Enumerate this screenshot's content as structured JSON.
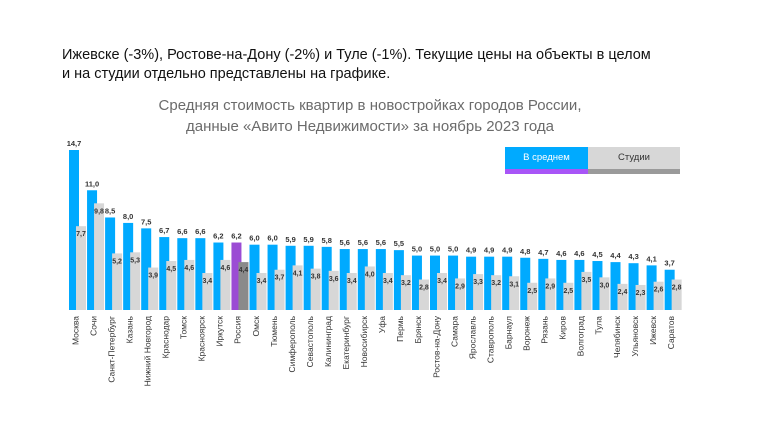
{
  "intro": {
    "line1": "Ижевске (-3%), Ростове-на-Дону (-2%) и Туле (-1%). Текущие цены на объекты в целом",
    "line2": "и на студии отдельно представлены на графике."
  },
  "colors": {
    "average": "#00aaff",
    "average_russia": "#9b4bd4",
    "studio": "#d7d7d7",
    "studio_russia": "#8a8a8a",
    "legend_average_strip": "#a855f7",
    "legend_studio_strip": "#9a9a9a"
  },
  "chart_data": {
    "type": "bar",
    "title": "Средняя стоимость квартир в новостройках городов России,",
    "subtitle": "данные «Авито Недвижимости» за ноябрь 2023 года",
    "legend_position": "top-right",
    "categories": [
      "Москва",
      "Сочи",
      "Санкт-Петербург",
      "Казань",
      "Нижний Новгород",
      "Краснодар",
      "Томск",
      "Красноярск",
      "Иркутск",
      "Россия",
      "Омск",
      "Тюмень",
      "Симферополь",
      "Севастополь",
      "Калининград",
      "Екатеринбург",
      "Новосибирск",
      "Уфа",
      "Пермь",
      "Брянск",
      "Ростов-на-Дону",
      "Самара",
      "Ярославль",
      "Ставрополь",
      "Барнаул",
      "Воронеж",
      "Рязань",
      "Киров",
      "Волгоград",
      "Тула",
      "Челябинск",
      "Ульяновск",
      "Ижевск",
      "Саратов"
    ],
    "series": [
      {
        "name": "В среднем",
        "values": [
          14.7,
          11.0,
          8.5,
          8.0,
          7.5,
          6.7,
          6.6,
          6.6,
          6.2,
          6.2,
          6.0,
          6.0,
          5.9,
          5.9,
          5.8,
          5.6,
          5.6,
          5.6,
          5.5,
          5.0,
          5.0,
          5.0,
          4.9,
          4.9,
          4.9,
          4.8,
          4.7,
          4.6,
          4.6,
          4.5,
          4.4,
          4.3,
          4.1,
          3.7
        ],
        "labels": [
          "14,7",
          "11,0",
          "8,5",
          "8,0",
          "7,5",
          "6,7",
          "6,6",
          "6,6",
          "6,2",
          "6,2",
          "6,0",
          "6,0",
          "5,9",
          "5,9",
          "5,8",
          "5,6",
          "5,6",
          "5,6",
          "5,5",
          "5,0",
          "5,0",
          "5,0",
          "4,9",
          "4,9",
          "4,9",
          "4,8",
          "4,7",
          "4,6",
          "4,6",
          "4,5",
          "4,4",
          "4,3",
          "4,1",
          "3,7"
        ]
      },
      {
        "name": "Студии",
        "values": [
          7.7,
          9.8,
          5.2,
          5.3,
          3.9,
          4.5,
          4.6,
          3.4,
          4.6,
          4.4,
          3.4,
          3.7,
          4.1,
          3.8,
          3.6,
          3.4,
          4.0,
          3.4,
          3.2,
          2.8,
          3.4,
          2.9,
          3.3,
          3.2,
          3.1,
          2.5,
          2.9,
          2.5,
          3.5,
          3.0,
          2.4,
          2.3,
          2.6,
          2.8
        ],
        "labels": [
          "7,7",
          "9,8",
          "5,2",
          "5,3",
          "3,9",
          "4,5",
          "4,6",
          "3,4",
          "4,6",
          "4,4",
          "3,4",
          "3,7",
          "4,1",
          "3,8",
          "3,6",
          "3,4",
          "4,0",
          "3,4",
          "3,2",
          "2,8",
          "3,4",
          "2,9",
          "3,3",
          "3,2",
          "3,1",
          "2,5",
          "2,9",
          "2,5",
          "3,5",
          "3,0",
          "2,4",
          "2,3",
          "2,6",
          "2,8"
        ]
      }
    ],
    "highlight_category": "Россия",
    "ylim": [
      0,
      15
    ],
    "grid": false
  }
}
